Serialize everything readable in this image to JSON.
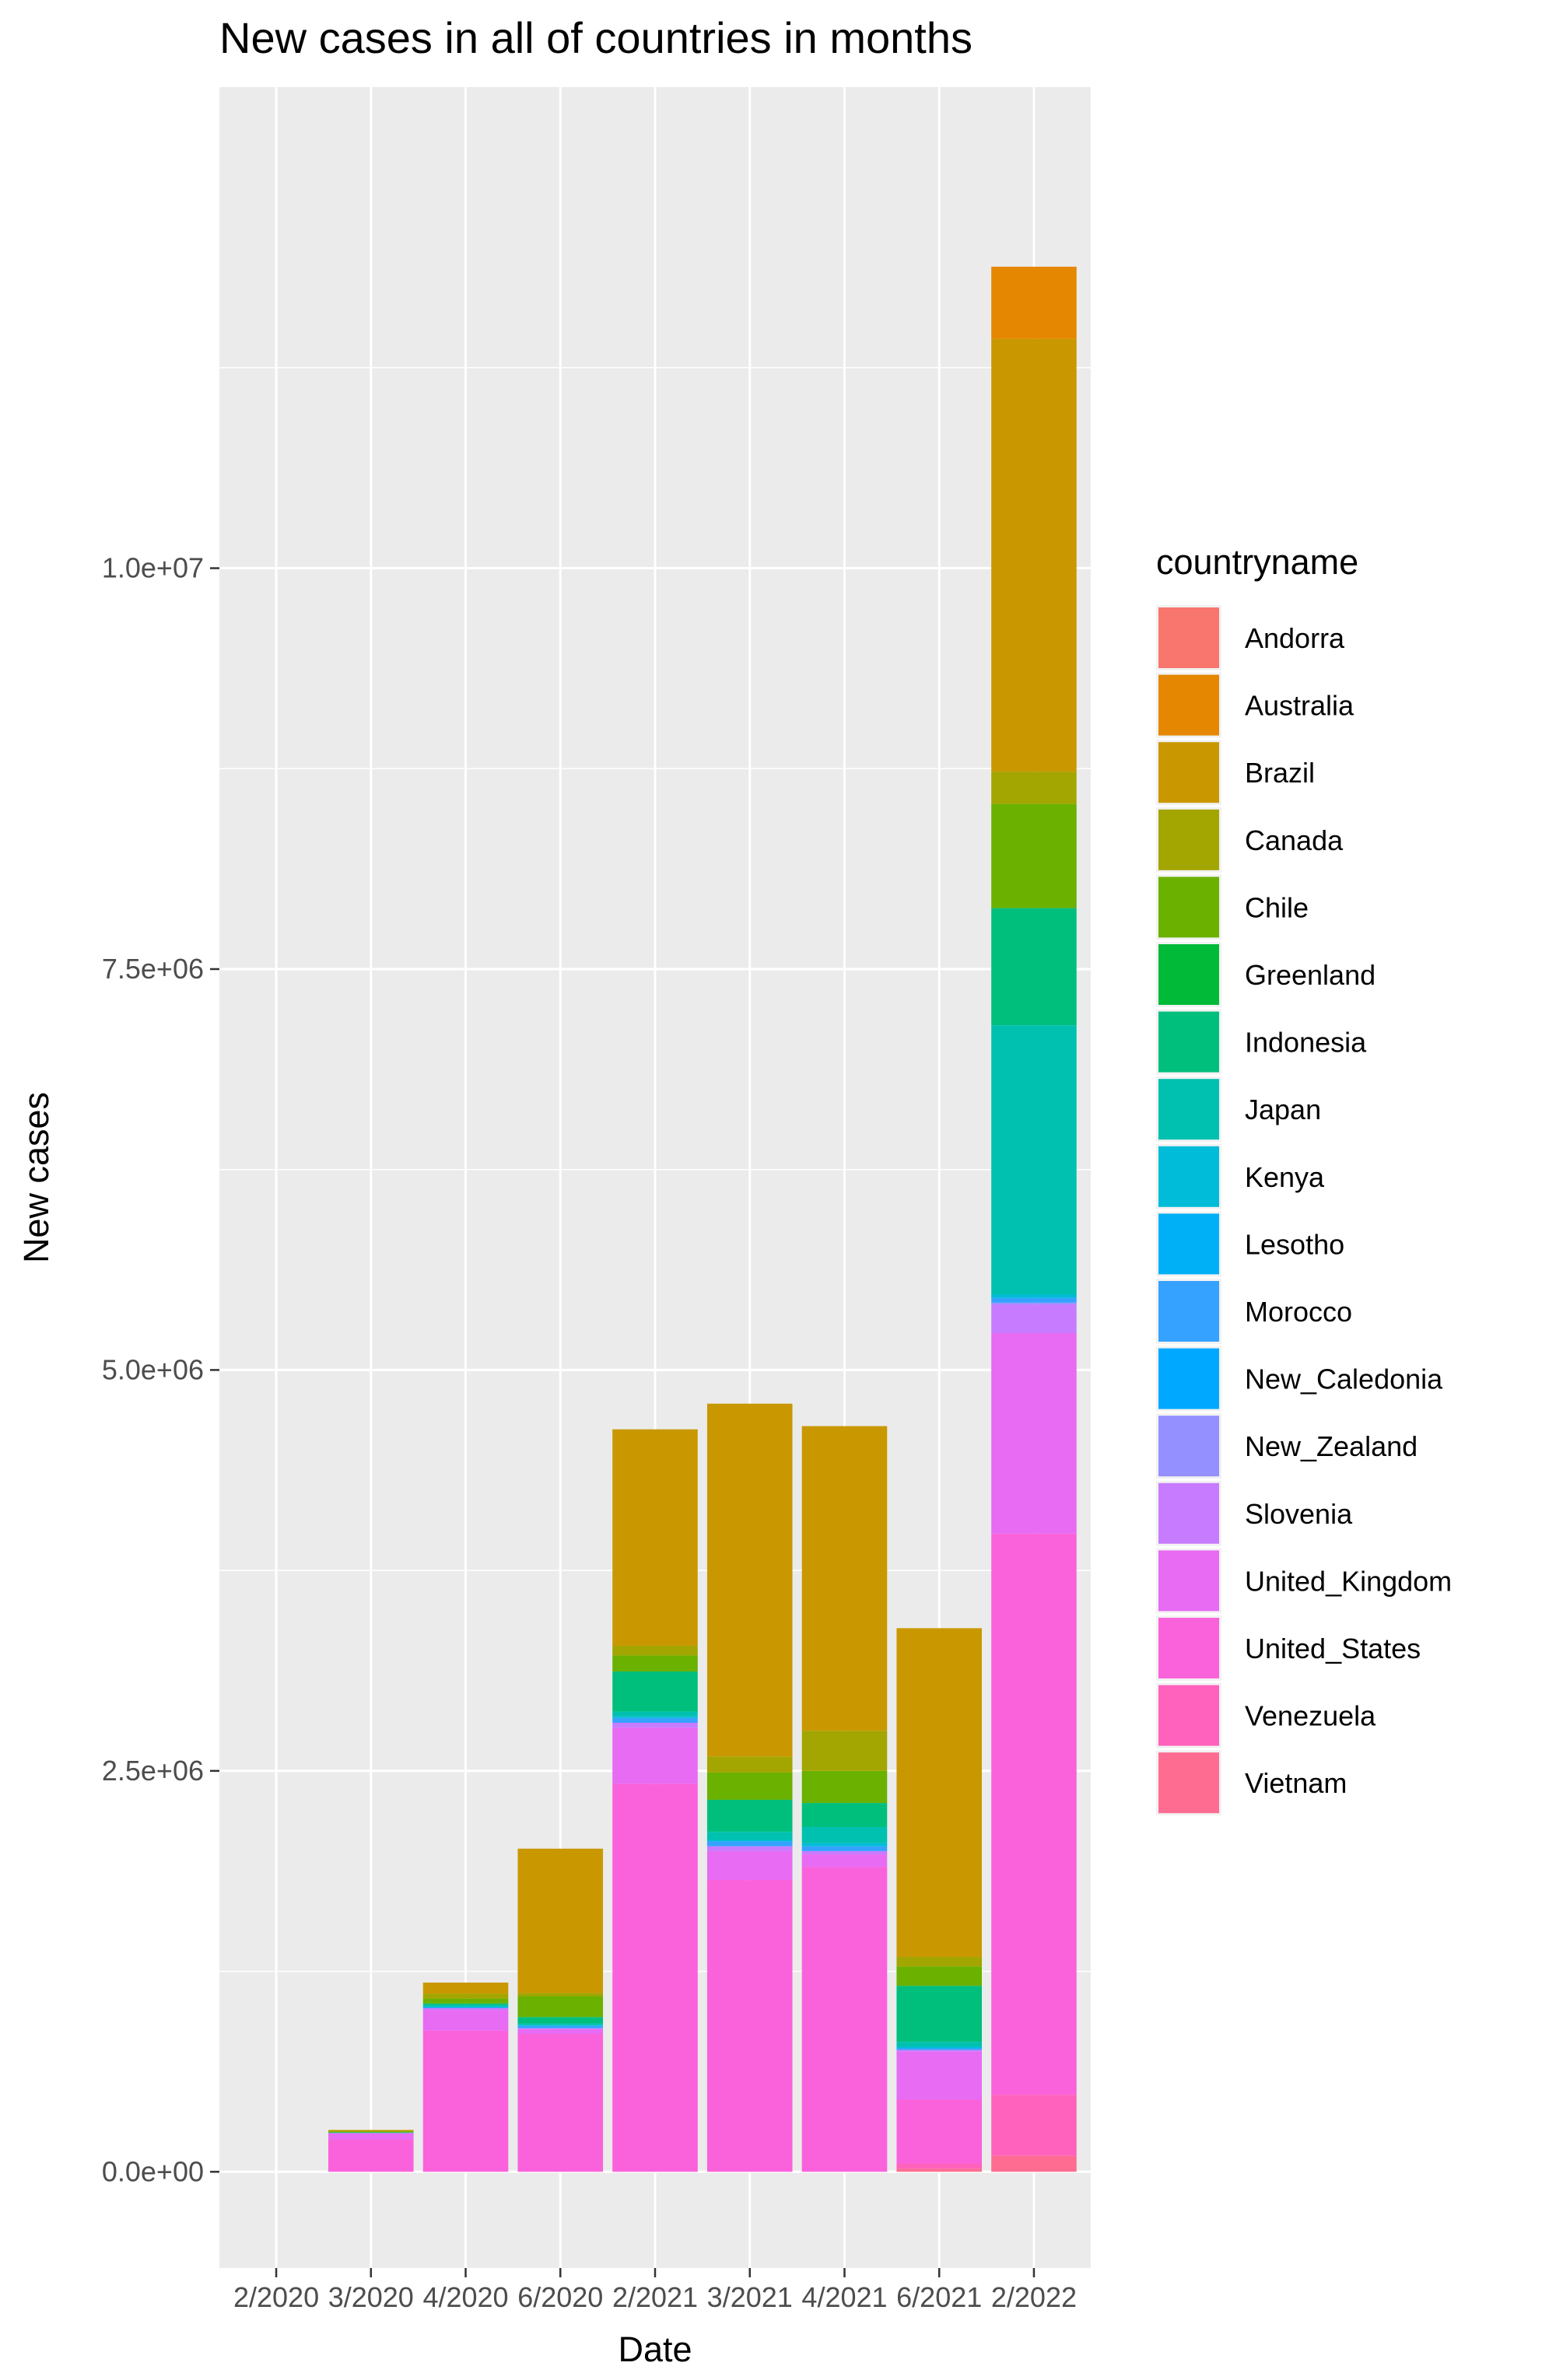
{
  "chart_data": {
    "type": "bar",
    "stacked": true,
    "title": "New cases in all of countries in months",
    "xlabel": "Date",
    "ylabel": "New cases",
    "ylim": [
      -600000,
      13000000
    ],
    "y_ticks": [
      0,
      2500000,
      5000000,
      7500000,
      10000000
    ],
    "y_tick_labels": [
      "0.0e+00",
      "2.5e+06",
      "5.0e+06",
      "7.5e+06",
      "1.0e+07"
    ],
    "categories": [
      "2/2020",
      "3/2020",
      "4/2020",
      "6/2020",
      "2/2021",
      "3/2021",
      "4/2021",
      "6/2021",
      "2/2022"
    ],
    "grid": true,
    "legend": {
      "title": "countryname",
      "position": "right"
    },
    "series": [
      {
        "name": "Andorra",
        "color": "#F8766D",
        "values": [
          0,
          0,
          0,
          0,
          0,
          0,
          0,
          0,
          0
        ]
      },
      {
        "name": "Australia",
        "color": "#E58700",
        "values": [
          0,
          0,
          0,
          0,
          0,
          0,
          0,
          0,
          450000
        ]
      },
      {
        "name": "Brazil",
        "color": "#C99800",
        "values": [
          0,
          5000,
          70000,
          900000,
          1350000,
          2200000,
          1900000,
          2050000,
          2700000
        ]
      },
      {
        "name": "Canada",
        "color": "#A3A500",
        "values": [
          0,
          5000,
          30000,
          20000,
          60000,
          100000,
          250000,
          60000,
          200000
        ]
      },
      {
        "name": "Chile",
        "color": "#6BB100",
        "values": [
          0,
          5000,
          30000,
          130000,
          100000,
          170000,
          200000,
          120000,
          650000
        ]
      },
      {
        "name": "Greenland",
        "color": "#00BA38",
        "values": [
          0,
          0,
          0,
          0,
          0,
          0,
          0,
          0,
          0
        ]
      },
      {
        "name": "Indonesia",
        "color": "#00BF7D",
        "values": [
          0,
          2000,
          10000,
          40000,
          250000,
          200000,
          150000,
          350000,
          730000
        ]
      },
      {
        "name": "Japan",
        "color": "#00C0AF",
        "values": [
          0,
          2000,
          10000,
          10000,
          30000,
          50000,
          100000,
          30000,
          1680000
        ]
      },
      {
        "name": "Kenya",
        "color": "#00BCD8",
        "values": [
          0,
          0,
          5000,
          5000,
          10000,
          10000,
          20000,
          10000,
          20000
        ]
      },
      {
        "name": "Lesotho",
        "color": "#00B0F6",
        "values": [
          0,
          0,
          0,
          0,
          0,
          0,
          0,
          0,
          0
        ]
      },
      {
        "name": "Morocco",
        "color": "#35A2FF",
        "values": [
          0,
          0,
          5000,
          15000,
          30000,
          30000,
          30000,
          10000,
          30000
        ]
      },
      {
        "name": "New_Caledonia",
        "color": "#00A9FF",
        "values": [
          0,
          0,
          0,
          0,
          0,
          0,
          0,
          0,
          0
        ]
      },
      {
        "name": "New_Zealand",
        "color": "#9590FF",
        "values": [
          0,
          0,
          0,
          0,
          0,
          0,
          0,
          0,
          10000
        ]
      },
      {
        "name": "Slovenia",
        "color": "#C77CFF",
        "values": [
          0,
          2000,
          10000,
          5000,
          30000,
          30000,
          20000,
          10000,
          180000
        ]
      },
      {
        "name": "United_Kingdom",
        "color": "#E76BF3",
        "values": [
          0,
          40000,
          130000,
          30000,
          350000,
          180000,
          80000,
          300000,
          1250000
        ]
      },
      {
        "name": "United_States",
        "color": "#FA62DB",
        "values": [
          0,
          200000,
          880000,
          860000,
          2420000,
          1820000,
          1900000,
          400000,
          3500000
        ]
      },
      {
        "name": "Venezuela",
        "color": "#FF62BC",
        "values": [
          0,
          0,
          0,
          0,
          0,
          0,
          0,
          30000,
          380000
        ]
      },
      {
        "name": "Vietnam",
        "color": "#FF6C91",
        "values": [
          0,
          0,
          0,
          0,
          0,
          0,
          0,
          20000,
          100000
        ]
      }
    ]
  }
}
